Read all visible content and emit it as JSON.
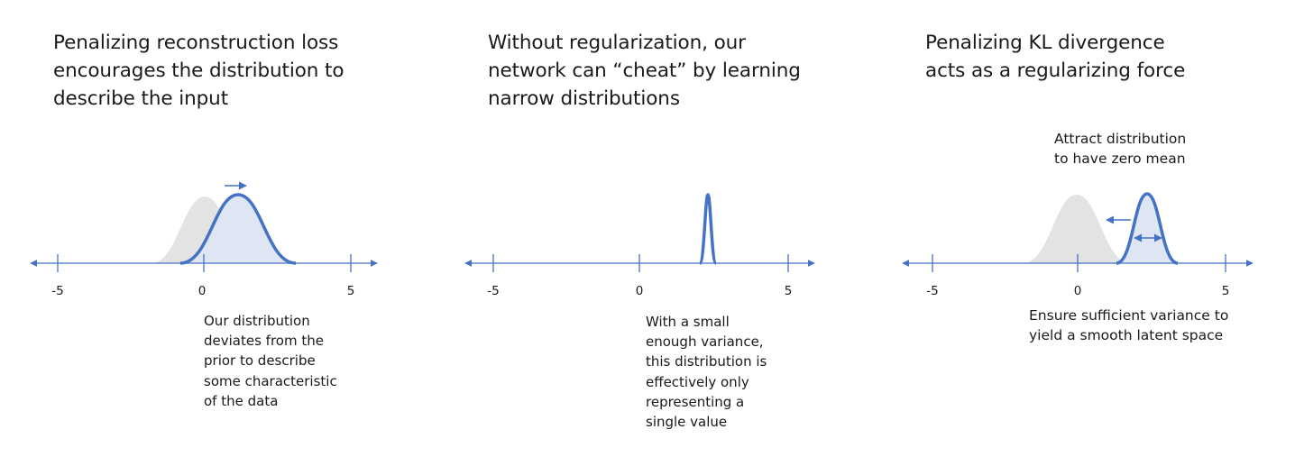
{
  "panels": [
    {
      "title_lines": [
        "Penalizing reconstruction loss",
        "encourages the distribution to",
        "describe the input"
      ],
      "caption_lines": [
        "Our distribution",
        "deviates from the",
        "prior to describe",
        "some characteristic",
        "of the data"
      ],
      "ticks": [
        "-5",
        "0",
        "5"
      ]
    },
    {
      "title_lines": [
        "Without regularization, our",
        "network can “cheat” by learning",
        "narrow distributions"
      ],
      "caption_lines": [
        "With a small",
        "enough variance,",
        "this distribution is",
        "effectively only",
        "representing a",
        "single value"
      ],
      "ticks": [
        "-5",
        "0",
        "5"
      ]
    },
    {
      "title_lines": [
        "Penalizing KL divergence",
        "acts as a regularizing force"
      ],
      "annotation_lines": [
        "Attract distribution",
        "to have zero mean"
      ],
      "caption_lines": [
        "Ensure sufficient variance to",
        "yield a smooth latent space"
      ],
      "ticks": [
        "-5",
        "0",
        "5"
      ]
    }
  ],
  "colors": {
    "accent": "#4472c4",
    "prior_fill": "#e3e3e3",
    "posterior_fill": "#dfe6f3",
    "text": "#1a1a1a"
  },
  "icons": [
    "arrow-right-icon",
    "arrow-left-icon",
    "double-arrow-icon"
  ]
}
